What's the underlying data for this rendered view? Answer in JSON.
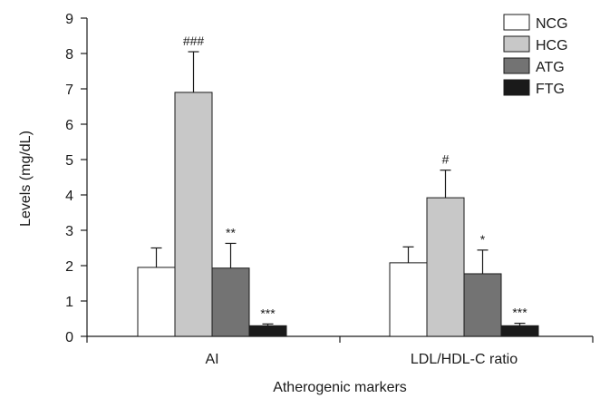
{
  "chart_data": {
    "type": "bar",
    "xlabel": "Atherogenic markers",
    "ylabel": "Levels (mg/dL)",
    "ylim": [
      0,
      9
    ],
    "yticks": [
      "0",
      "1",
      "2",
      "3",
      "4",
      "5",
      "6",
      "7",
      "8",
      "9"
    ],
    "categories": [
      "AI",
      "LDL/HDL-C ratio"
    ],
    "legend_position": "top-right",
    "series": [
      {
        "name": "NCG",
        "color": "#ffffff",
        "values": [
          1.95,
          2.08
        ],
        "errors": [
          0.55,
          0.45
        ],
        "annotations": [
          "",
          ""
        ]
      },
      {
        "name": "HCG",
        "color": "#c8c8c8",
        "values": [
          6.9,
          3.92
        ],
        "errors": [
          1.15,
          0.78
        ],
        "annotations": [
          "###",
          "#"
        ]
      },
      {
        "name": "ATG",
        "color": "#737373",
        "values": [
          1.93,
          1.77
        ],
        "errors": [
          0.7,
          0.67
        ],
        "annotations": [
          "**",
          "*"
        ]
      },
      {
        "name": "FTG",
        "color": "#1a1a1a",
        "values": [
          0.3,
          0.3
        ],
        "errors": [
          0.05,
          0.07
        ],
        "annotations": [
          "***",
          "***"
        ]
      }
    ]
  }
}
